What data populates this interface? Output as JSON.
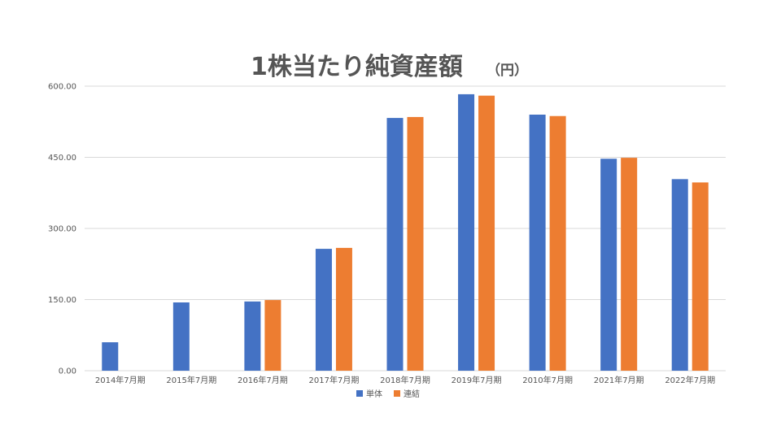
{
  "chart_data": {
    "type": "bar",
    "title": "1株当たり純資産額",
    "title_unit": "（円）",
    "categories": [
      "2014年7月期",
      "2015年7月期",
      "2016年7月期",
      "2017年7月期",
      "2018年7月期",
      "2019年7月期",
      "2010年7月期",
      "2021年7月期",
      "2022年7月期"
    ],
    "series": [
      {
        "name": "単体",
        "color": "#4472c4",
        "values": [
          60,
          144,
          146,
          257,
          533,
          583,
          540,
          447,
          404
        ]
      },
      {
        "name": "連結",
        "color": "#ed7d31",
        "values": [
          null,
          null,
          149,
          259,
          535,
          580,
          537,
          449,
          397
        ]
      }
    ],
    "ylim": [
      0,
      600
    ],
    "yticks": [
      "0.00",
      "150.00",
      "300.00",
      "450.00",
      "600.00"
    ],
    "ytick_values": [
      0,
      150,
      300,
      450,
      600
    ],
    "grid": true,
    "legend_position": "bottom-center"
  }
}
